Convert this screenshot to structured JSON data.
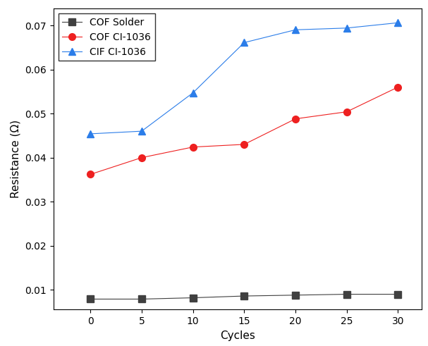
{
  "chart_data": {
    "type": "line",
    "x_label": "Cycles",
    "y_label": "Resistance (Ω)",
    "x": [
      0,
      5,
      10,
      15,
      20,
      25,
      30
    ],
    "series": [
      {
        "name": "COF Solder",
        "color": "#404040",
        "marker": "square",
        "line_style": "solid",
        "values": [
          0.0079,
          0.0079,
          0.0082,
          0.0086,
          0.0088,
          0.009,
          0.009
        ]
      },
      {
        "name": "COF CI-1036",
        "color": "#ee2020",
        "marker": "circle",
        "line_style": "solid",
        "values": [
          0.0362,
          0.04,
          0.0424,
          0.043,
          0.0488,
          0.0504,
          0.056
        ]
      },
      {
        "name": "CIF CI-1036",
        "color": "#2b7de9",
        "marker": "triangle",
        "line_style": "solid",
        "values": [
          0.0454,
          0.046,
          0.0547,
          0.0661,
          0.069,
          0.0694,
          0.0706
        ]
      }
    ],
    "xlim": [
      -3.6,
      32.3
    ],
    "xticks": [
      0,
      5,
      10,
      15,
      20,
      25,
      30
    ],
    "ylim": [
      0.0055,
      0.0738
    ],
    "yticks": [
      0.01,
      0.02,
      0.03,
      0.04,
      0.05,
      0.06,
      0.07
    ],
    "legend": "upper left",
    "grid": false
  }
}
